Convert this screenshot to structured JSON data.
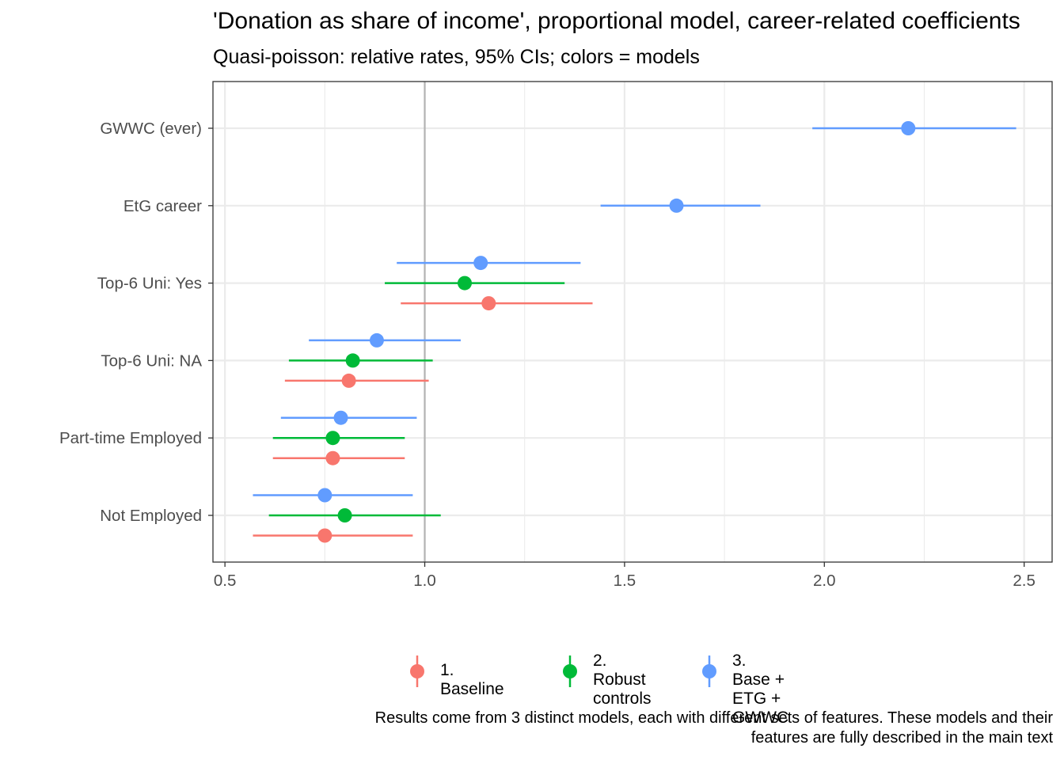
{
  "title": "'Donation as share of income', proportional model, career-related coefficients",
  "subtitle": "Quasi-poisson: relative rates, 95% CIs; colors = models",
  "caption": "Results come from 3 distinct models, each with different sets of features. These models and their\nfeatures are fully described in the main text",
  "chart_data": {
    "type": "scatter",
    "orientation": "horizontal",
    "xlim": [
      0.47,
      2.57
    ],
    "x_ticks": [
      "0.5",
      "1.0",
      "1.5",
      "2.0",
      "2.5"
    ],
    "reference_line_x": 1.0,
    "categories": [
      "GWWC (ever)",
      "EtG career",
      "Top-6 Uni: Yes",
      "Top-6 Uni: NA",
      "Part-time Employed",
      "Not Employed"
    ],
    "grid": true,
    "legend_position": "bottom",
    "series": [
      {
        "name": "1. Baseline",
        "color": "#F8766D",
        "points": [
          {
            "category": "Top-6 Uni: Yes",
            "estimate": 1.16,
            "low": 0.94,
            "high": 1.42
          },
          {
            "category": "Top-6 Uni: NA",
            "estimate": 0.81,
            "low": 0.65,
            "high": 1.01
          },
          {
            "category": "Part-time Employed",
            "estimate": 0.77,
            "low": 0.62,
            "high": 0.95
          },
          {
            "category": "Not Employed",
            "estimate": 0.75,
            "low": 0.57,
            "high": 0.97
          }
        ]
      },
      {
        "name": "2. Robust\ncontrols",
        "color": "#00BA38",
        "points": [
          {
            "category": "Top-6 Uni: Yes",
            "estimate": 1.1,
            "low": 0.9,
            "high": 1.35
          },
          {
            "category": "Top-6 Uni: NA",
            "estimate": 0.82,
            "low": 0.66,
            "high": 1.02
          },
          {
            "category": "Part-time Employed",
            "estimate": 0.77,
            "low": 0.62,
            "high": 0.95
          },
          {
            "category": "Not Employed",
            "estimate": 0.8,
            "low": 0.61,
            "high": 1.04
          }
        ]
      },
      {
        "name": "3. Base + ETG +\nGWWC",
        "color": "#619CFF",
        "points": [
          {
            "category": "GWWC (ever)",
            "estimate": 2.21,
            "low": 1.97,
            "high": 2.48
          },
          {
            "category": "EtG career",
            "estimate": 1.63,
            "low": 1.44,
            "high": 1.84
          },
          {
            "category": "Top-6 Uni: Yes",
            "estimate": 1.14,
            "low": 0.93,
            "high": 1.39
          },
          {
            "category": "Top-6 Uni: NA",
            "estimate": 0.88,
            "low": 0.71,
            "high": 1.09
          },
          {
            "category": "Part-time Employed",
            "estimate": 0.79,
            "low": 0.64,
            "high": 0.98
          },
          {
            "category": "Not Employed",
            "estimate": 0.75,
            "low": 0.57,
            "high": 0.97
          }
        ]
      }
    ]
  }
}
